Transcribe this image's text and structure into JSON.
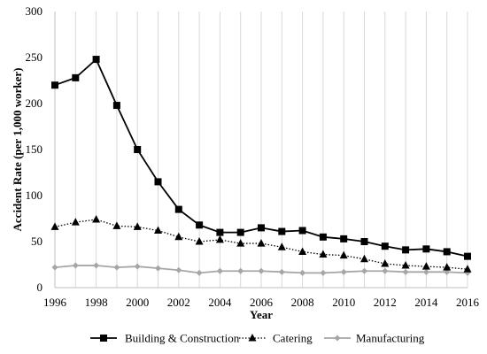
{
  "chart_data": {
    "type": "line",
    "title": "",
    "xlabel": "Year",
    "ylabel": "Accident Rate (per 1,000 worker)",
    "x": [
      1996,
      1997,
      1998,
      1999,
      2000,
      2001,
      2002,
      2003,
      2004,
      2005,
      2006,
      2007,
      2008,
      2009,
      2010,
      2011,
      2012,
      2013,
      2014,
      2015,
      2016
    ],
    "xlim": [
      1996,
      2016
    ],
    "ylim": [
      0,
      300
    ],
    "x_ticks": [
      "1996",
      "1998",
      "2000",
      "2002",
      "2004",
      "2006",
      "2008",
      "2010",
      "2012",
      "2014",
      "2016"
    ],
    "y_ticks": [
      "0",
      "50",
      "100",
      "150",
      "200",
      "250",
      "300"
    ],
    "grid": "vertical",
    "legend_position": "bottom",
    "series": [
      {
        "name": "Building & Construction",
        "marker": "square",
        "line_style": "solid",
        "color": "#000000",
        "values": [
          220,
          228,
          248,
          198,
          150,
          115,
          85,
          68,
          60,
          60,
          65,
          61,
          62,
          55,
          53,
          50,
          45,
          41,
          42,
          39,
          34
        ]
      },
      {
        "name": "Catering",
        "marker": "triangle",
        "line_style": "dotted",
        "color": "#000000",
        "values": [
          66,
          71,
          74,
          67,
          66,
          62,
          55,
          50,
          52,
          48,
          48,
          44,
          39,
          36,
          35,
          31,
          26,
          24,
          23,
          22,
          20
        ]
      },
      {
        "name": "Manufacturing",
        "marker": "diamond",
        "line_style": "solid",
        "color": "#a6a6a6",
        "values": [
          22,
          24,
          24,
          22,
          23,
          21,
          19,
          16,
          18,
          18,
          18,
          17,
          16,
          16,
          17,
          18,
          18,
          17,
          17,
          17,
          16
        ]
      }
    ]
  }
}
